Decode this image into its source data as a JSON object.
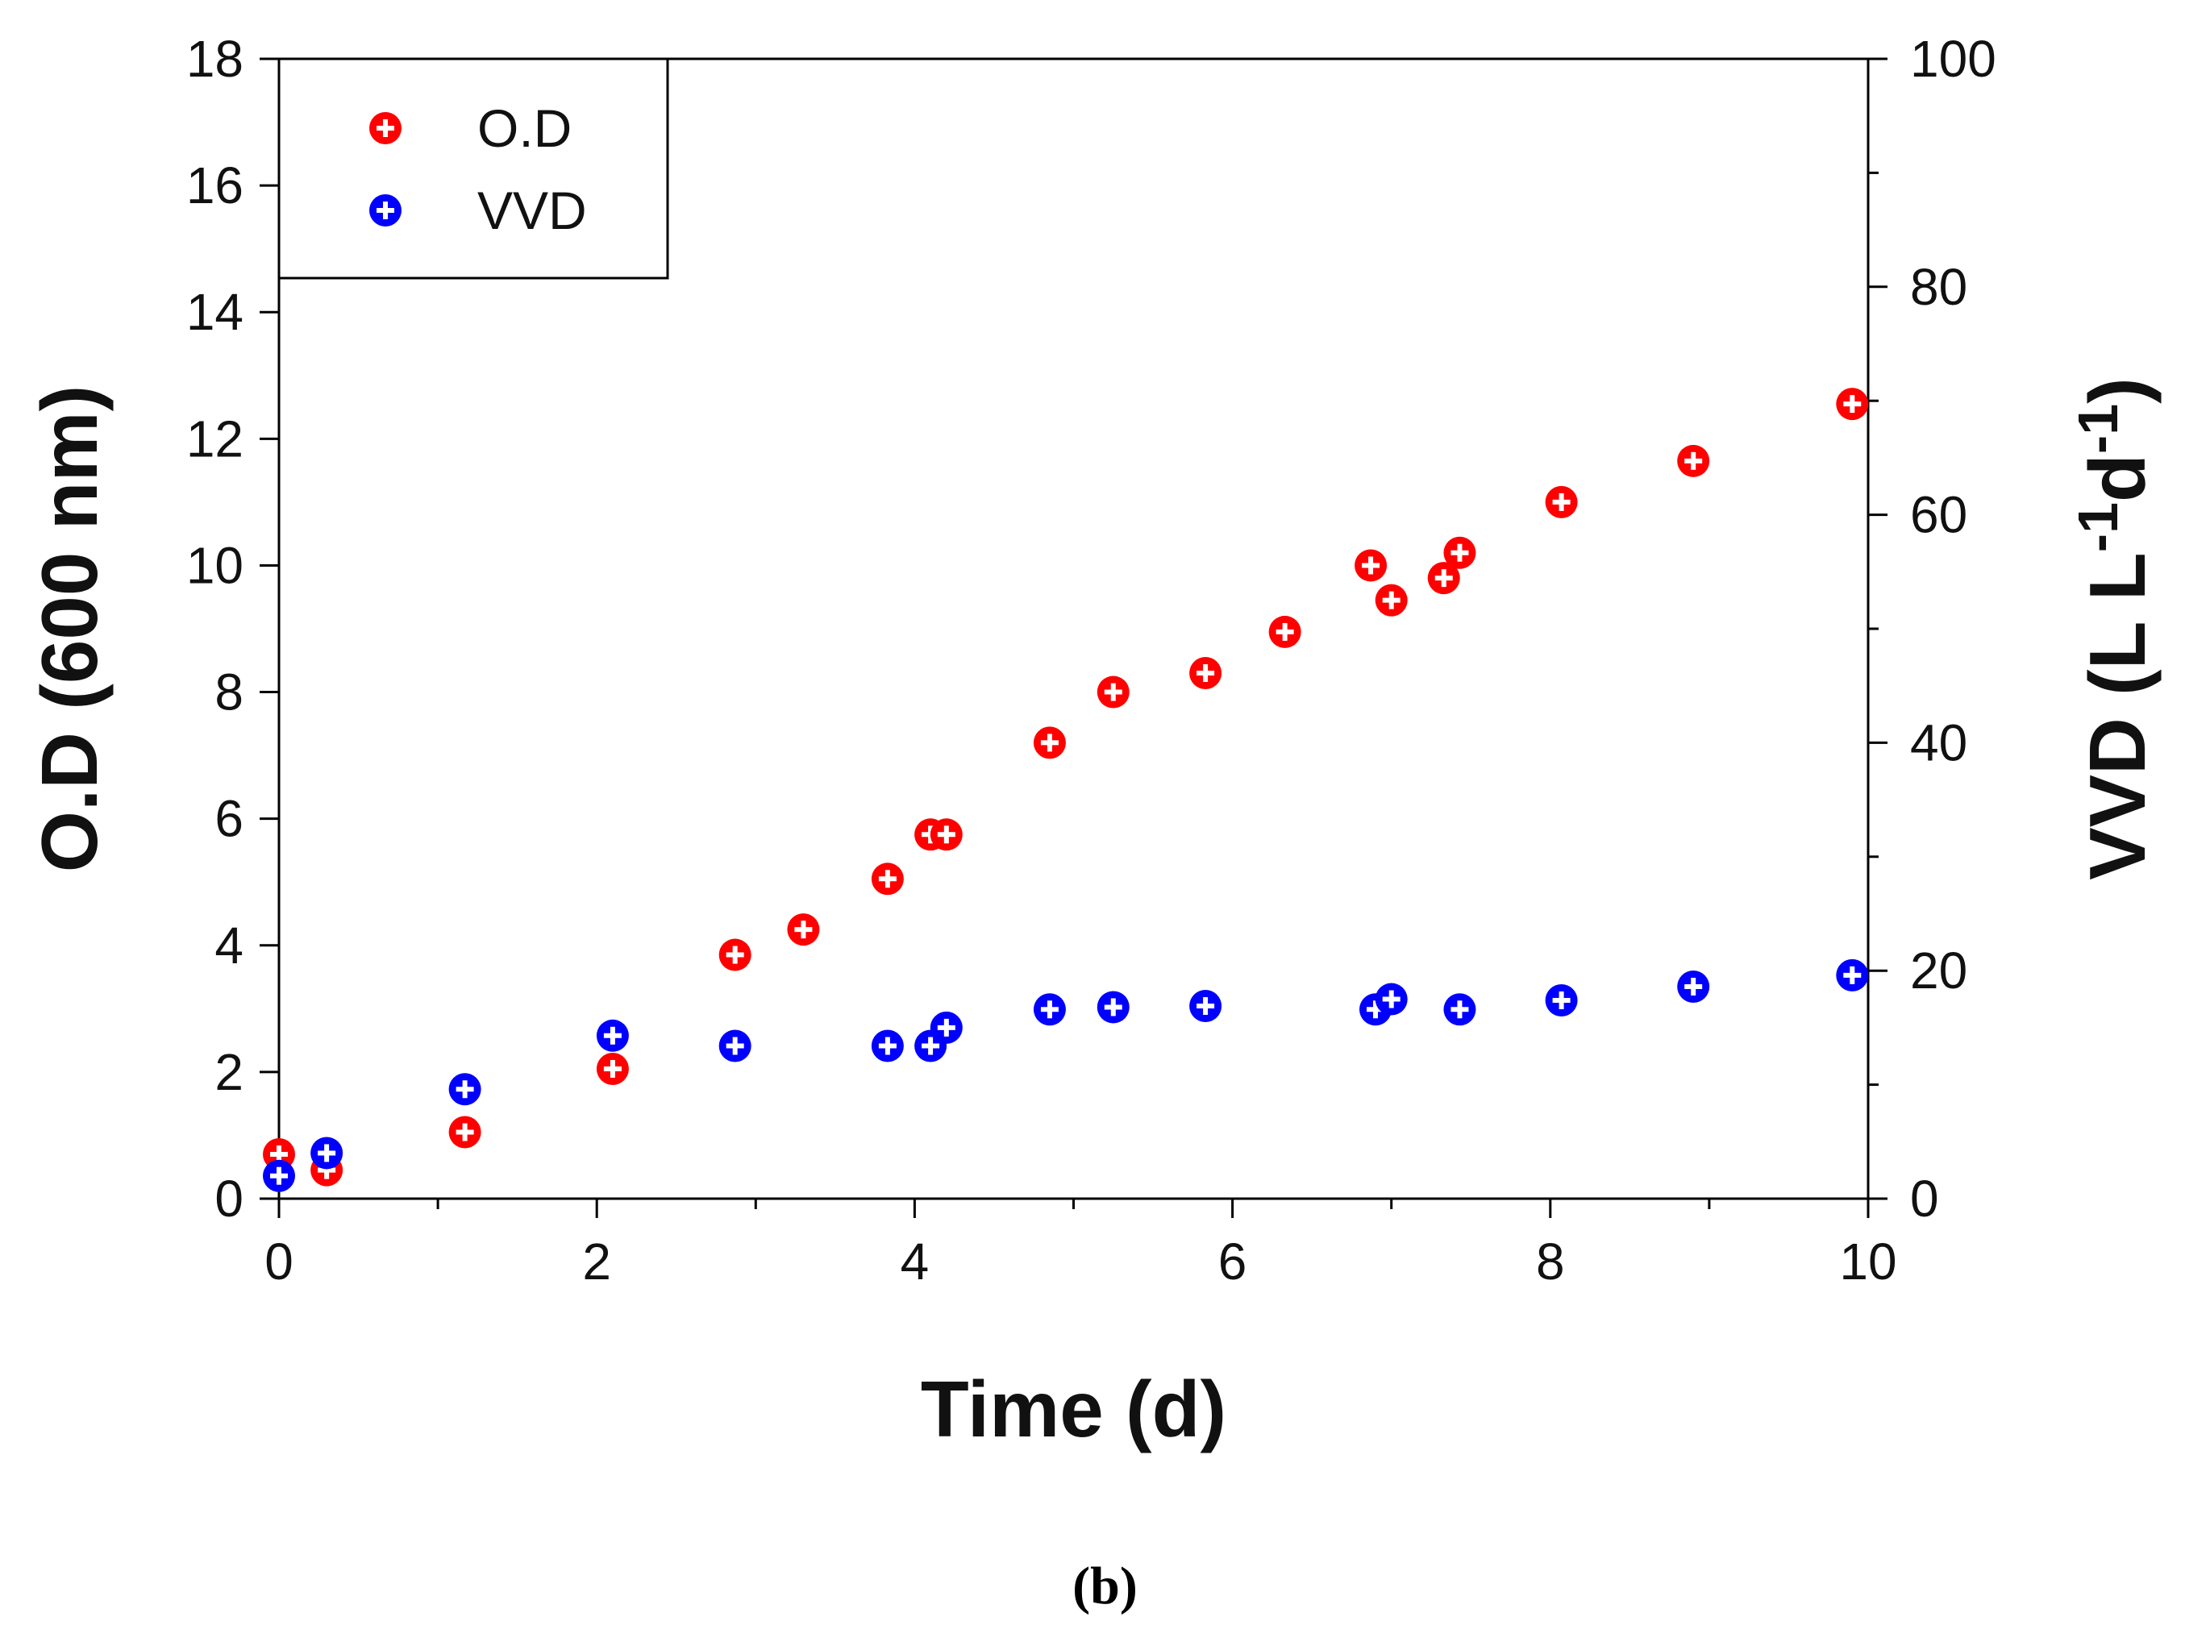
{
  "caption": "(b)",
  "chart_data": {
    "type": "scatter",
    "title": "",
    "xlabel": "Time (d)",
    "ylabel_left": "O.D (600 nm)",
    "ylabel_right": "VVD (L L-1d-1)",
    "xlim": [
      0,
      10
    ],
    "ylim_left": [
      0,
      18
    ],
    "ylim_right": [
      0,
      100
    ],
    "x_ticks": [
      "0",
      "2",
      "4",
      "6",
      "8",
      "10"
    ],
    "y_left_ticks": [
      "0",
      "2",
      "4",
      "6",
      "8",
      "10",
      "12",
      "14",
      "16",
      "18"
    ],
    "y_right_ticks": [
      "0",
      "20",
      "40",
      "60",
      "80",
      "100"
    ],
    "grid": false,
    "legend_position": "top-left",
    "series": [
      {
        "name": "O.D",
        "axis": "left",
        "color": "#ff0000",
        "points": [
          [
            0.0,
            0.7
          ],
          [
            0.3,
            0.45
          ],
          [
            1.17,
            1.05
          ],
          [
            2.1,
            2.05
          ],
          [
            2.87,
            3.85
          ],
          [
            3.3,
            4.25
          ],
          [
            3.83,
            5.05
          ],
          [
            4.1,
            5.75
          ],
          [
            4.2,
            5.75
          ],
          [
            4.85,
            7.2
          ],
          [
            5.25,
            8.0
          ],
          [
            5.83,
            8.3
          ],
          [
            6.33,
            8.95
          ],
          [
            6.87,
            10.0
          ],
          [
            7.0,
            9.45
          ],
          [
            7.33,
            9.8
          ],
          [
            7.43,
            10.2
          ],
          [
            8.07,
            11.0
          ],
          [
            8.9,
            11.65
          ],
          [
            9.9,
            12.55
          ]
        ]
      },
      {
        "name": "VVD",
        "axis": "right",
        "color": "#0000ff",
        "points": [
          [
            0.0,
            2.0
          ],
          [
            0.3,
            4.0
          ],
          [
            1.17,
            9.6
          ],
          [
            2.1,
            14.3
          ],
          [
            2.87,
            13.4
          ],
          [
            3.83,
            13.4
          ],
          [
            4.1,
            13.4
          ],
          [
            4.2,
            15.0
          ],
          [
            4.85,
            16.6
          ],
          [
            5.25,
            16.8
          ],
          [
            5.83,
            16.9
          ],
          [
            6.9,
            16.6
          ],
          [
            7.0,
            17.5
          ],
          [
            7.43,
            16.6
          ],
          [
            8.07,
            17.4
          ],
          [
            8.9,
            18.6
          ],
          [
            9.9,
            19.6
          ]
        ]
      }
    ]
  }
}
